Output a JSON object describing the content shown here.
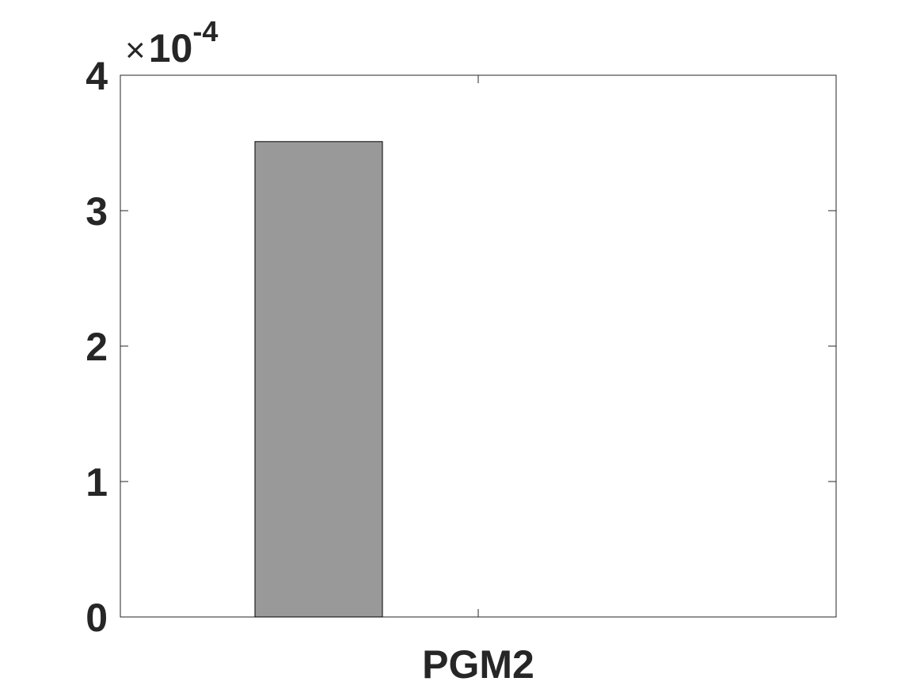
{
  "chart_data": {
    "type": "bar",
    "categories": [
      "PGM2"
    ],
    "series": [
      {
        "values": [
          0.000351
        ]
      }
    ],
    "title": "",
    "xlabel": "",
    "ylabel": "",
    "ylim": [
      0,
      0.0004
    ],
    "y_ticks": [
      0,
      1,
      2,
      3,
      4
    ],
    "y_tick_labels": [
      "0",
      "1",
      "2",
      "3",
      "4"
    ],
    "y_exponent": {
      "times": "×",
      "base": "10",
      "power": "-4"
    },
    "grid": false,
    "legend": "none",
    "colors": {
      "bar_fill": "#999999",
      "bar_edge": "#000000",
      "axis": "#262626",
      "text": "#262626"
    }
  }
}
